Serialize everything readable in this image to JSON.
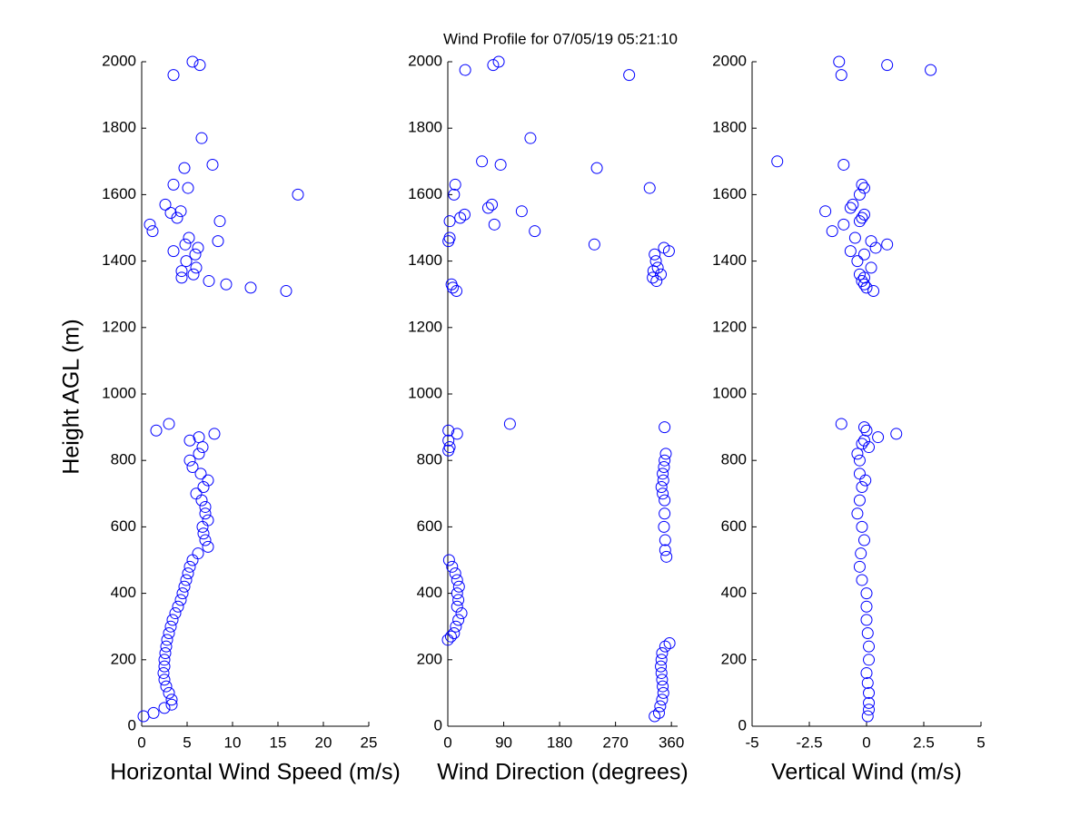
{
  "chart_data": [
    {
      "type": "scatter",
      "title": "Wind Profile for  07/05/19 05:21:10",
      "x_label": "Horizontal Wind Speed (m/s)",
      "y_label": "Height AGL (m)",
      "color": "#0000ff",
      "xlim": [
        0,
        25
      ],
      "xticks": [
        0,
        5,
        10,
        15,
        20,
        25
      ],
      "ylim": [
        0,
        2000
      ],
      "yticks": [
        0,
        200,
        400,
        600,
        800,
        1000,
        1200,
        1400,
        1600,
        1800,
        2000
      ],
      "x": [
        0.2,
        1.3,
        2.5,
        3.3,
        3.3,
        3.0,
        2.7,
        2.5,
        2.4,
        2.5,
        2.5,
        2.6,
        2.7,
        2.8,
        3.0,
        3.2,
        3.4,
        3.7,
        4.0,
        4.3,
        4.5,
        4.7,
        4.9,
        5.1,
        5.3,
        5.6,
        6.2,
        7.3,
        7.0,
        6.8,
        6.7,
        7.3,
        7.0,
        7.0,
        6.6,
        6.0,
        6.8,
        7.3,
        6.5,
        5.6,
        5.3,
        6.3,
        6.7,
        5.3,
        6.3,
        8.0,
        1.6,
        3.0,
        15.9,
        12.0,
        9.3,
        7.4,
        4.4,
        5.7,
        4.4,
        6.0,
        4.9,
        5.9,
        3.5,
        6.2,
        4.8,
        8.4,
        5.2,
        1.2,
        0.9,
        8.6,
        3.9,
        3.2,
        4.3,
        2.6,
        17.2,
        5.1,
        3.5,
        4.7,
        7.8,
        6.6,
        3.5,
        6.4,
        5.6
      ],
      "y": [
        30,
        40,
        55,
        65,
        80,
        100,
        120,
        140,
        160,
        180,
        200,
        220,
        240,
        260,
        280,
        300,
        320,
        340,
        360,
        380,
        400,
        420,
        440,
        460,
        480,
        500,
        520,
        540,
        560,
        580,
        600,
        620,
        640,
        660,
        680,
        700,
        720,
        740,
        760,
        780,
        800,
        820,
        840,
        860,
        870,
        880,
        890,
        910,
        1310,
        1320,
        1330,
        1340,
        1350,
        1360,
        1370,
        1380,
        1400,
        1420,
        1430,
        1440,
        1450,
        1460,
        1470,
        1490,
        1510,
        1520,
        1530,
        1545,
        1550,
        1570,
        1600,
        1620,
        1630,
        1680,
        1690,
        1770,
        1960,
        1990,
        2000
      ]
    },
    {
      "type": "scatter",
      "x_label": "Wind Direction (degrees)",
      "color": "#0000ff",
      "xlim": [
        0,
        370
      ],
      "xticks": [
        0,
        90,
        180,
        270,
        360
      ],
      "ylim": [
        0,
        2000
      ],
      "yticks": [
        0,
        200,
        400,
        600,
        800,
        1000,
        1200,
        1400,
        1600,
        1800,
        2000
      ],
      "x": [
        333,
        340,
        342,
        345,
        347,
        346,
        345,
        344,
        343,
        344,
        345,
        350,
        357,
        0,
        5,
        10,
        13,
        17,
        22,
        15,
        17,
        15,
        18,
        15,
        12,
        7,
        2,
        352,
        350,
        350,
        348,
        349,
        349,
        346,
        344,
        347,
        346,
        348,
        349,
        351,
        1,
        3,
        1,
        15,
        1,
        349,
        100,
        14,
        8,
        6,
        336,
        330,
        343,
        331,
        338,
        335,
        333,
        356,
        348,
        236,
        1,
        3,
        140,
        75,
        3,
        20,
        27,
        119,
        65,
        71,
        10,
        325,
        12,
        240,
        85,
        55,
        133,
        292,
        28,
        73,
        82
      ],
      "y": [
        30,
        40,
        60,
        80,
        100,
        120,
        140,
        160,
        180,
        200,
        220,
        240,
        250,
        260,
        270,
        280,
        300,
        320,
        340,
        360,
        380,
        400,
        420,
        440,
        460,
        480,
        500,
        510,
        530,
        560,
        600,
        640,
        680,
        700,
        720,
        740,
        760,
        780,
        800,
        820,
        830,
        840,
        860,
        880,
        890,
        900,
        910,
        1310,
        1320,
        1330,
        1340,
        1350,
        1360,
        1370,
        1380,
        1400,
        1420,
        1430,
        1440,
        1450,
        1460,
        1470,
        1490,
        1510,
        1520,
        1530,
        1540,
        1550,
        1560,
        1570,
        1600,
        1620,
        1630,
        1680,
        1690,
        1700,
        1770,
        1960,
        1975,
        1990,
        2000
      ]
    },
    {
      "type": "scatter",
      "x_label": "Vertical Wind (m/s)",
      "color": "#0000ff",
      "xlim": [
        -5,
        5
      ],
      "xticks": [
        -5,
        -2.5,
        0,
        2.5,
        5
      ],
      "ylim": [
        0,
        2000
      ],
      "yticks": [
        0,
        200,
        400,
        600,
        800,
        1000,
        1200,
        1400,
        1600,
        1800,
        2000
      ],
      "x": [
        0.05,
        0.1,
        0.1,
        0.1,
        0.05,
        0.0,
        0.1,
        0.1,
        0.05,
        0.0,
        0.0,
        0.0,
        -0.2,
        -0.3,
        -0.25,
        -0.1,
        -0.2,
        -0.4,
        -0.3,
        -0.2,
        -0.05,
        -0.3,
        -0.3,
        -0.4,
        0.1,
        -0.2,
        -0.1,
        0.5,
        1.3,
        0.0,
        -0.1,
        -1.1,
        0.3,
        0.0,
        -0.1,
        -0.2,
        -0.1,
        -0.3,
        0.2,
        -0.4,
        -0.1,
        -0.7,
        0.4,
        0.9,
        0.2,
        -0.5,
        -1.5,
        -1.0,
        -0.3,
        -0.2,
        -0.1,
        -1.8,
        -0.7,
        -0.6,
        -0.3,
        -0.1,
        -0.2,
        -1.0,
        -3.9,
        -1.1,
        2.8,
        0.9,
        -1.2
      ],
      "y": [
        30,
        50,
        70,
        100,
        130,
        160,
        200,
        240,
        280,
        320,
        360,
        400,
        440,
        480,
        520,
        560,
        600,
        640,
        680,
        720,
        740,
        760,
        800,
        820,
        840,
        850,
        860,
        870,
        880,
        890,
        900,
        910,
        1310,
        1320,
        1330,
        1340,
        1350,
        1360,
        1380,
        1400,
        1420,
        1430,
        1440,
        1450,
        1460,
        1470,
        1490,
        1510,
        1520,
        1530,
        1540,
        1550,
        1560,
        1570,
        1600,
        1620,
        1630,
        1690,
        1700,
        1960,
        1975,
        1990,
        2000
      ]
    }
  ]
}
